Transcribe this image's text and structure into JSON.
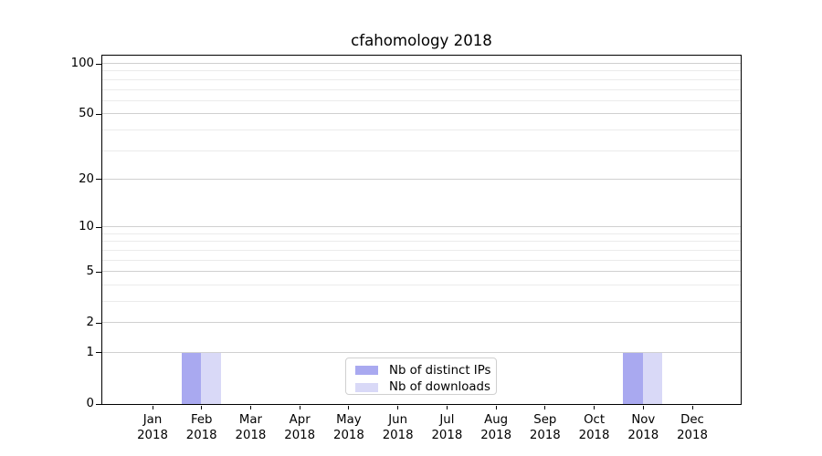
{
  "chart_data": {
    "type": "bar",
    "title": "cfahomology 2018",
    "categories": [
      "Jan 2018",
      "Feb 2018",
      "Mar 2018",
      "Apr 2018",
      "May 2018",
      "Jun 2018",
      "Jul 2018",
      "Aug 2018",
      "Sep 2018",
      "Oct 2018",
      "Nov 2018",
      "Dec 2018"
    ],
    "series": [
      {
        "name": "Nb of distinct IPs",
        "color": "#a9a9f0",
        "values": [
          0,
          1,
          0,
          0,
          0,
          0,
          0,
          0,
          0,
          0,
          1,
          0
        ]
      },
      {
        "name": "Nb of downloads",
        "color": "#d9d9f7",
        "values": [
          0,
          1,
          0,
          0,
          0,
          0,
          0,
          0,
          0,
          0,
          1,
          0
        ]
      }
    ],
    "xlabel": "",
    "ylabel": "",
    "yscale": "log1p",
    "ylim": [
      0,
      112
    ],
    "yticks_major": [
      0,
      1,
      2,
      5,
      10,
      20,
      50,
      100
    ],
    "yticks_minor": [
      3,
      4,
      6,
      7,
      8,
      9,
      30,
      40,
      60,
      70,
      80,
      90
    ],
    "grid": true,
    "legend_position": "lower center",
    "colors": {
      "grid_major": "#d0d0d0",
      "grid_minor": "#ebebeb",
      "spine": "#000000",
      "text": "#000000"
    }
  }
}
